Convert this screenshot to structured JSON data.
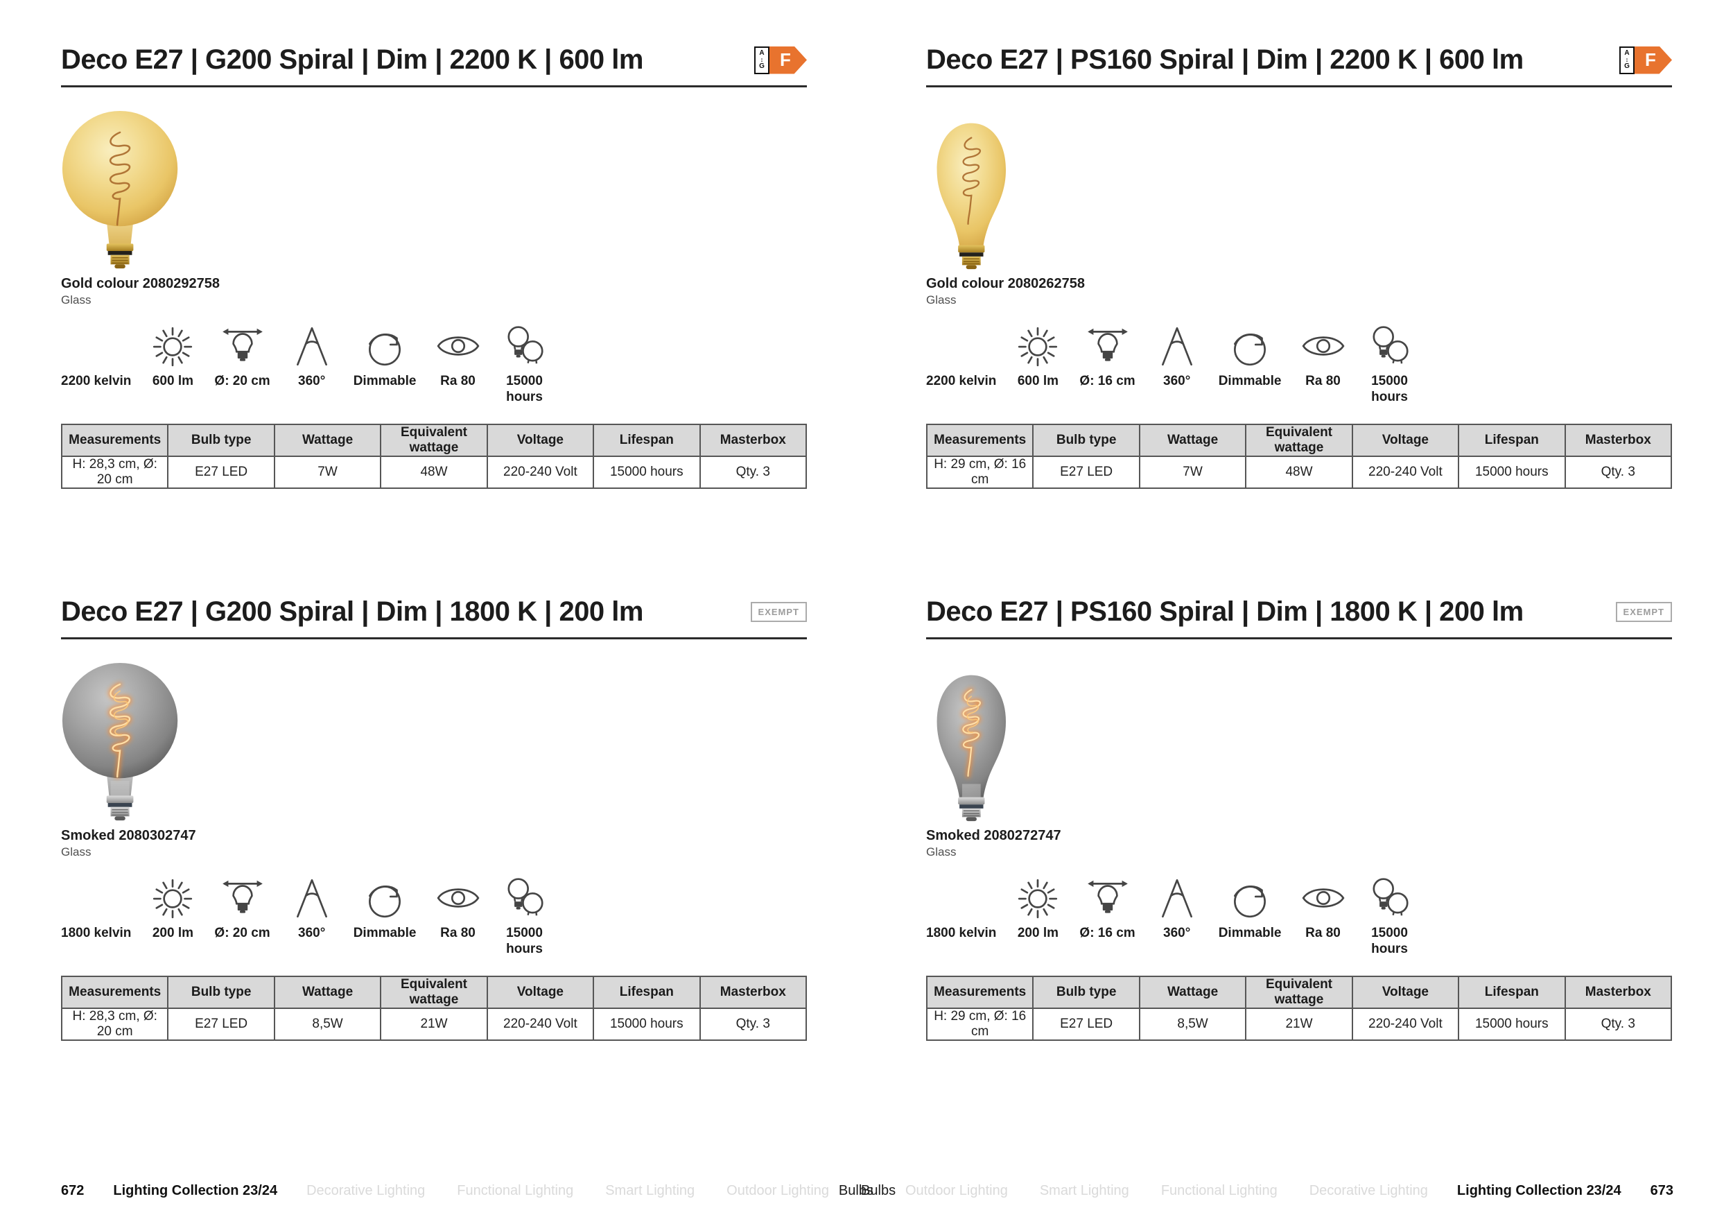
{
  "energy_label": {
    "letter": "F",
    "top": "A",
    "arrow": "↕",
    "bottom": "G"
  },
  "exempt_label": "EXEMPT",
  "colors": {
    "energy_arrow_orange": "#e8732e",
    "table_header_gray": "#d9d9d9",
    "kelvin_icon_orange": "#e05a2b",
    "gold_glass": "#e9c566",
    "smoked_glass": "#8a8a8a"
  },
  "table_headers": [
    "Measurements",
    "Bulb type",
    "Wattage",
    "Equivalent wattage",
    "Voltage",
    "Lifespan",
    "Masterbox"
  ],
  "products": [
    {
      "title": "Deco E27 | G200 Spiral | Dim | 2200 K | 600 lm",
      "badge": "energy-f",
      "product_code": "Gold colour 2080292758",
      "material": "Glass",
      "icons": [
        {
          "type": "kelvin",
          "label": "2200 kelvin"
        },
        {
          "type": "lumen",
          "label": "600 lm"
        },
        {
          "type": "diameter",
          "label": "Ø: 20 cm"
        },
        {
          "type": "beam-angle",
          "label": "360°"
        },
        {
          "type": "dimmable",
          "label": "Dimmable"
        },
        {
          "type": "cri",
          "label": "Ra 80"
        },
        {
          "type": "lifespan",
          "label": "15000\nhours"
        }
      ],
      "specs": [
        "H: 28,3 cm, Ø: 20 cm",
        "E27 LED",
        "7W",
        "48W",
        "220-240 Volt",
        "15000 hours",
        "Qty. 3"
      ]
    },
    {
      "title": "Deco E27 | PS160 Spiral | Dim | 2200 K | 600 lm",
      "badge": "energy-f",
      "product_code": "Gold colour 2080262758",
      "material": "Glass",
      "icons": [
        {
          "type": "kelvin",
          "label": "2200 kelvin"
        },
        {
          "type": "lumen",
          "label": "600 lm"
        },
        {
          "type": "diameter",
          "label": "Ø: 16 cm"
        },
        {
          "type": "beam-angle",
          "label": "360°"
        },
        {
          "type": "dimmable",
          "label": "Dimmable"
        },
        {
          "type": "cri",
          "label": "Ra 80"
        },
        {
          "type": "lifespan",
          "label": "15000\nhours"
        }
      ],
      "specs": [
        "H: 29 cm, Ø: 16 cm",
        "E27 LED",
        "7W",
        "48W",
        "220-240 Volt",
        "15000 hours",
        "Qty. 3"
      ]
    },
    {
      "title": "Deco E27 | G200 Spiral | Dim | 1800 K | 200 lm",
      "badge": "exempt",
      "product_code": "Smoked 2080302747",
      "material": "Glass",
      "icons": [
        {
          "type": "kelvin",
          "label": "1800 kelvin"
        },
        {
          "type": "lumen",
          "label": "200 lm"
        },
        {
          "type": "diameter",
          "label": "Ø: 20 cm"
        },
        {
          "type": "beam-angle",
          "label": "360°"
        },
        {
          "type": "dimmable",
          "label": "Dimmable"
        },
        {
          "type": "cri",
          "label": "Ra 80"
        },
        {
          "type": "lifespan",
          "label": "15000\nhours"
        }
      ],
      "specs": [
        "H: 28,3 cm, Ø: 20 cm",
        "E27 LED",
        "8,5W",
        "21W",
        "220-240 Volt",
        "15000 hours",
        "Qty. 3"
      ]
    },
    {
      "title": "Deco E27 | PS160 Spiral | Dim | 1800 K | 200 lm",
      "badge": "exempt",
      "product_code": "Smoked 2080272747",
      "material": "Glass",
      "icons": [
        {
          "type": "kelvin",
          "label": "1800 kelvin"
        },
        {
          "type": "lumen",
          "label": "200 lm"
        },
        {
          "type": "diameter",
          "label": "Ø: 16 cm"
        },
        {
          "type": "beam-angle",
          "label": "360°"
        },
        {
          "type": "dimmable",
          "label": "Dimmable"
        },
        {
          "type": "cri",
          "label": "Ra 80"
        },
        {
          "type": "lifespan",
          "label": "15000\nhours"
        }
      ],
      "specs": [
        "H: 29 cm, Ø: 16 cm",
        "E27 LED",
        "8,5W",
        "21W",
        "220-240 Volt",
        "15000 hours",
        "Qty. 3"
      ]
    }
  ],
  "footer": {
    "left": {
      "page": "672",
      "collection": "Lighting Collection 23/24",
      "nav": [
        {
          "label": "Decorative Lighting",
          "muted": true
        },
        {
          "label": "Functional Lighting",
          "muted": true
        },
        {
          "label": "Smart Lighting",
          "muted": true
        },
        {
          "label": "Outdoor Lighting",
          "muted": true
        },
        {
          "label": "Bulbs",
          "muted": false
        }
      ]
    },
    "right": {
      "nav": [
        {
          "label": "Bulbs",
          "muted": false
        },
        {
          "label": "Outdoor Lighting",
          "muted": true
        },
        {
          "label": "Smart Lighting",
          "muted": true
        },
        {
          "label": "Functional Lighting",
          "muted": true
        },
        {
          "label": "Decorative Lighting",
          "muted": true
        }
      ],
      "collection": "Lighting Collection 23/24",
      "page": "673"
    }
  }
}
